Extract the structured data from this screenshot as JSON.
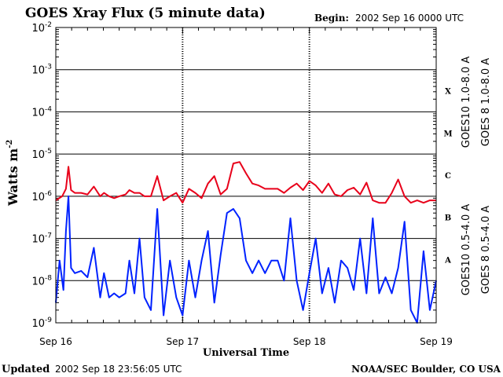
{
  "chart_data": {
    "type": "line",
    "title": "GOES Xray Flux (5 minute data)",
    "begin_label": "Begin:",
    "begin_value": "2002 Sep 16 0000 UTC",
    "xlabel": "Universal Time",
    "ylabel_main": "Watts m",
    "ylabel_exp": "-2",
    "x_ticks": [
      "Sep 16",
      "Sep 17",
      "Sep 18",
      "Sep 19"
    ],
    "x_range_days": [
      0,
      3
    ],
    "y_scale": "log",
    "y_ticks": [
      {
        "base": "10",
        "exp": "-2"
      },
      {
        "base": "10",
        "exp": "-3"
      },
      {
        "base": "10",
        "exp": "-4"
      },
      {
        "base": "10",
        "exp": "-5"
      },
      {
        "base": "10",
        "exp": "-6"
      },
      {
        "base": "10",
        "exp": "-7"
      },
      {
        "base": "10",
        "exp": "-8"
      },
      {
        "base": "10",
        "exp": "-9"
      }
    ],
    "ylim": [
      1e-09,
      0.01
    ],
    "flare_classes": [
      "X",
      "M",
      "C",
      "B",
      "A"
    ],
    "grid": "horizontal lines at each decade; dashed vertical lines at day boundaries",
    "legend_placement": "right, vertical text",
    "legend": [
      {
        "label": "GOES10 1.0-8.0 A",
        "color": "#8a2be2"
      },
      {
        "label": "GOES 8 1.0-8.0 A",
        "color": "#e8001a"
      },
      {
        "label": "GOES10 0.5-4.0 A",
        "color": "#ffa000"
      },
      {
        "label": "GOES 8 0.5-4.0 A",
        "color": "#0022ff"
      }
    ],
    "series": [
      {
        "name": "GOES 8 1.0-8.0 A",
        "color": "#e8001a",
        "x_days": [
          0,
          0.05,
          0.08,
          0.1,
          0.12,
          0.15,
          0.2,
          0.25,
          0.3,
          0.35,
          0.38,
          0.42,
          0.46,
          0.5,
          0.55,
          0.58,
          0.62,
          0.66,
          0.7,
          0.75,
          0.8,
          0.85,
          0.9,
          0.95,
          1.0,
          1.05,
          1.1,
          1.15,
          1.2,
          1.25,
          1.3,
          1.35,
          1.4,
          1.45,
          1.5,
          1.55,
          1.6,
          1.65,
          1.7,
          1.75,
          1.8,
          1.85,
          1.9,
          1.95,
          2.0,
          2.05,
          2.1,
          2.15,
          2.2,
          2.25,
          2.3,
          2.35,
          2.4,
          2.45,
          2.5,
          2.55,
          2.6,
          2.65,
          2.7,
          2.75,
          2.8,
          2.85,
          2.9,
          2.95,
          3.0
        ],
        "values": [
          8e-07,
          1e-06,
          1.5e-06,
          5e-06,
          1.4e-06,
          1.2e-06,
          1.2e-06,
          1.1e-06,
          1.7e-06,
          1e-06,
          1.2e-06,
          1e-06,
          9e-07,
          1e-06,
          1.1e-06,
          1.4e-06,
          1.2e-06,
          1.2e-06,
          1e-06,
          1e-06,
          3e-06,
          8e-07,
          1e-06,
          1.2e-06,
          7e-07,
          1.5e-06,
          1.2e-06,
          9e-07,
          2e-06,
          3e-06,
          1.1e-06,
          1.5e-06,
          6e-06,
          6.5e-06,
          3.5e-06,
          2e-06,
          1.8e-06,
          1.5e-06,
          1.5e-06,
          1.5e-06,
          1.2e-06,
          1.6e-06,
          2e-06,
          1.4e-06,
          2.3e-06,
          1.8e-06,
          1.2e-06,
          2e-06,
          1.1e-06,
          1e-06,
          1.4e-06,
          1.6e-06,
          1.1e-06,
          2.1e-06,
          8e-07,
          7e-07,
          7e-07,
          1.2e-06,
          2.5e-06,
          1e-06,
          7e-07,
          8e-07,
          7e-07,
          8e-07,
          8e-07
        ]
      },
      {
        "name": "GOES 8 0.5-4.0 A",
        "color": "#0022ff",
        "x_days": [
          0,
          0.03,
          0.06,
          0.08,
          0.1,
          0.12,
          0.15,
          0.2,
          0.25,
          0.3,
          0.35,
          0.38,
          0.42,
          0.46,
          0.5,
          0.55,
          0.58,
          0.62,
          0.66,
          0.7,
          0.75,
          0.8,
          0.85,
          0.9,
          0.95,
          1.0,
          1.05,
          1.1,
          1.15,
          1.2,
          1.25,
          1.3,
          1.35,
          1.4,
          1.45,
          1.5,
          1.55,
          1.6,
          1.65,
          1.7,
          1.75,
          1.8,
          1.85,
          1.9,
          1.95,
          2.0,
          2.05,
          2.1,
          2.15,
          2.2,
          2.25,
          2.3,
          2.35,
          2.4,
          2.45,
          2.5,
          2.55,
          2.6,
          2.65,
          2.7,
          2.75,
          2.8,
          2.85,
          2.9,
          2.95,
          3.0
        ],
        "values": [
          3e-09,
          3e-08,
          6e-09,
          1.5e-07,
          1e-06,
          2e-08,
          1.5e-08,
          1.7e-08,
          1.2e-08,
          6e-08,
          4e-09,
          1.5e-08,
          4e-09,
          5e-09,
          4e-09,
          5e-09,
          3e-08,
          5e-09,
          1e-07,
          4e-09,
          2e-09,
          5e-07,
          1.5e-09,
          3e-08,
          4e-09,
          1.5e-09,
          3e-08,
          4e-09,
          3e-08,
          1.5e-07,
          3e-09,
          4e-08,
          4e-07,
          5e-07,
          3e-07,
          3e-08,
          1.5e-08,
          3e-08,
          1.5e-08,
          3e-08,
          3e-08,
          1e-08,
          3e-07,
          1e-08,
          2e-09,
          1.5e-08,
          1e-07,
          5e-09,
          2e-08,
          3e-09,
          3e-08,
          2e-08,
          6e-09,
          1e-07,
          5e-09,
          3e-07,
          5e-09,
          1.2e-08,
          5e-09,
          2e-08,
          2.5e-07,
          2e-09,
          1e-09,
          5e-08,
          2e-09,
          1e-08
        ]
      }
    ]
  },
  "footer": {
    "updated_label": "Updated",
    "updated_value": "2002 Sep 18 23:56:05 UTC",
    "credit": "NOAA/SEC Boulder, CO USA"
  }
}
